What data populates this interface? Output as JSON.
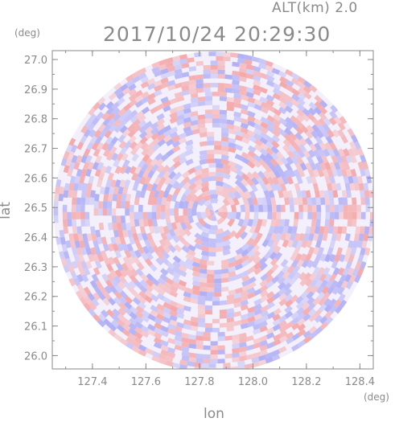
{
  "header": {
    "altitude_label": "ALT(km)  2.0",
    "timestamp": "2017/10/24  20:29:30"
  },
  "chart_data": {
    "type": "heatmap",
    "subtype": "radar-ppi-polar",
    "title": "2017/10/24  20:29:30",
    "subtitle": "ALT(km)  2.0",
    "xlabel": "lon",
    "ylabel": "lat",
    "x_unit": "(deg)",
    "y_unit": "(deg)",
    "xlim": [
      127.25,
      128.45
    ],
    "ylim": [
      25.955,
      27.03
    ],
    "xticks": [
      "127.4",
      "127.6",
      "127.8",
      "128.0",
      "128.2",
      "128.4"
    ],
    "xtick_values": [
      127.4,
      127.6,
      127.8,
      128.0,
      128.2,
      128.4
    ],
    "yticks": [
      "26.0",
      "26.1",
      "26.2",
      "26.3",
      "26.4",
      "26.5",
      "26.6",
      "26.7",
      "26.8",
      "26.9",
      "27.0"
    ],
    "ytick_values": [
      26.0,
      26.1,
      26.2,
      26.3,
      26.4,
      26.5,
      26.6,
      26.7,
      26.8,
      26.9,
      27.0
    ],
    "radar_center": {
      "lon": 127.855,
      "lat": 26.485
    },
    "radar_range_deg_lon": 0.6,
    "grid": false,
    "colors": {
      "positive": "#f5a0a0",
      "negative": "#a8a8f5",
      "neutral": "#f4f0fb",
      "frame": "#8a8a8a"
    }
  }
}
